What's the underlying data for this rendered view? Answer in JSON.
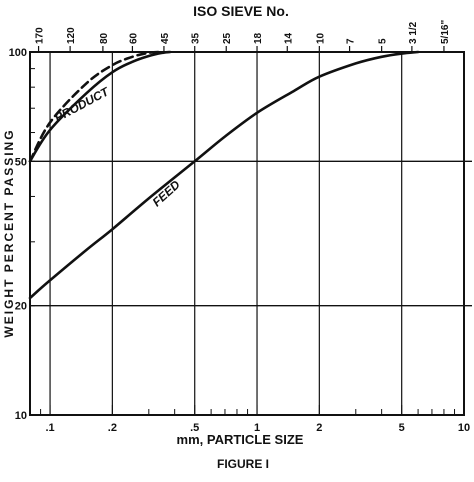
{
  "chart_data": {
    "type": "line",
    "top_axis_title": "ISO SIEVE No.",
    "top_ticks": [
      {
        "label": "170",
        "x": 0.088
      },
      {
        "label": "120",
        "x": 0.125
      },
      {
        "label": "80",
        "x": 0.18
      },
      {
        "label": "60",
        "x": 0.25
      },
      {
        "label": "45",
        "x": 0.355
      },
      {
        "label": "35",
        "x": 0.5
      },
      {
        "label": "25",
        "x": 0.71
      },
      {
        "label": "18",
        "x": 1.0
      },
      {
        "label": "14",
        "x": 1.4
      },
      {
        "label": "10",
        "x": 2.0
      },
      {
        "label": "7",
        "x": 2.8
      },
      {
        "label": "5",
        "x": 4.0
      },
      {
        "label": "3 1/2",
        "x": 5.6
      },
      {
        "label": "5/16\"",
        "x": 8.0
      }
    ],
    "xlabel": "mm, PARTICLE SIZE",
    "ylabel": "WEIGHT PERCENT PASSING",
    "x_scale": "log",
    "y_scale": "log",
    "xlim": [
      0.08,
      10
    ],
    "ylim": [
      10,
      100
    ],
    "x_ticks": [
      {
        "label": ".1",
        "x": 0.1
      },
      {
        "label": ".2",
        "x": 0.2
      },
      {
        "label": ".5",
        "x": 0.5
      },
      {
        "label": "1",
        "x": 1
      },
      {
        "label": "2",
        "x": 2
      },
      {
        "label": "5",
        "x": 5
      },
      {
        "label": "10",
        "x": 10
      }
    ],
    "y_ticks": [
      {
        "label": "100",
        "y": 100
      },
      {
        "label": "50",
        "y": 50
      },
      {
        "label": "20",
        "y": 20
      },
      {
        "label": "10",
        "y": 10
      }
    ],
    "grid": true,
    "series": [
      {
        "name": "FEED",
        "style": "solid",
        "x": [
          0.08,
          0.1,
          0.15,
          0.2,
          0.3,
          0.5,
          0.7,
          1.0,
          1.5,
          2.0,
          3.0,
          4.0,
          5.0,
          6.0
        ],
        "y": [
          21,
          23.5,
          28.5,
          32.5,
          39.5,
          50,
          58.5,
          68,
          78,
          85.5,
          93,
          97,
          99,
          100
        ]
      },
      {
        "name": "PRODUCT",
        "style": "solid",
        "x": [
          0.08,
          0.1,
          0.15,
          0.2,
          0.25,
          0.3,
          0.35,
          0.38
        ],
        "y": [
          50,
          61,
          77,
          88,
          94,
          97.5,
          99.5,
          100
        ]
      },
      {
        "name": "",
        "style": "dashed",
        "x": [
          0.08,
          0.1,
          0.15,
          0.2,
          0.25,
          0.3,
          0.35
        ],
        "y": [
          50,
          64,
          82,
          92,
          97,
          99.5,
          100
        ]
      }
    ],
    "annotations": [
      {
        "text": "PRODUCT",
        "x": 0.145,
        "y": 70,
        "rotate": -28
      },
      {
        "text": "FEED",
        "x": 0.375,
        "y": 40,
        "rotate": -42
      }
    ],
    "caption": "FIGURE I"
  },
  "colors": {
    "ink": "#111111",
    "background": "#ffffff"
  }
}
